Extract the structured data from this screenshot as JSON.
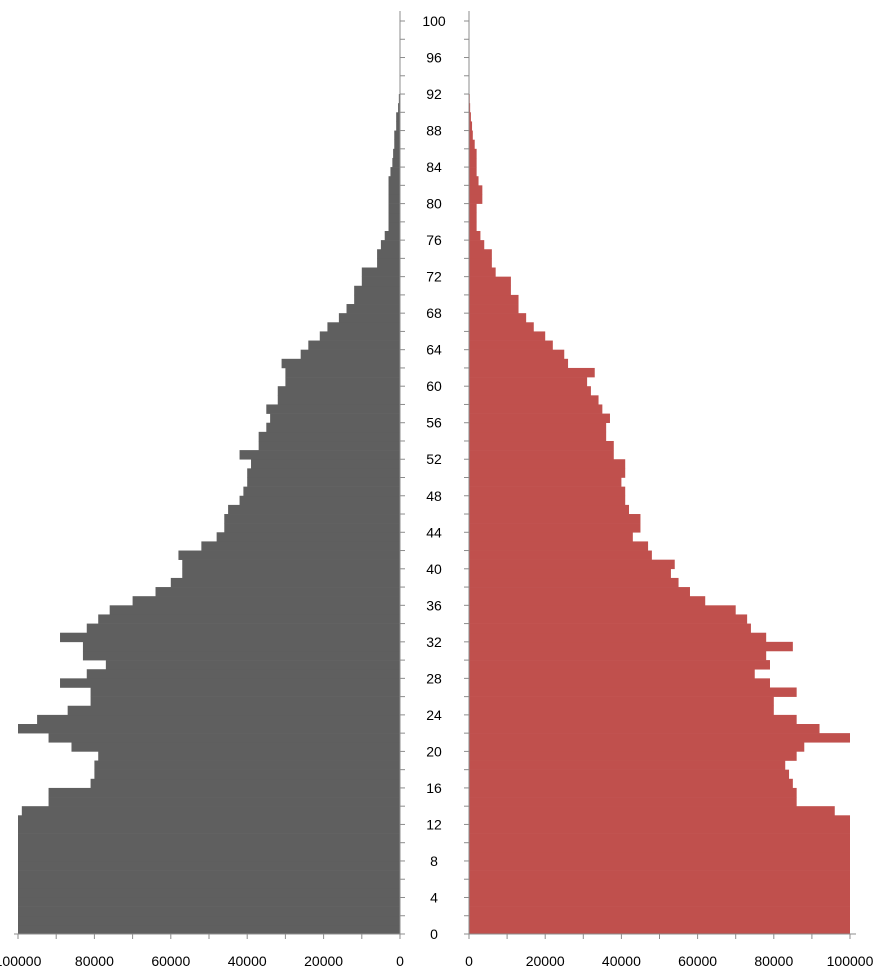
{
  "chart_data": [
    {
      "type": "bar",
      "orientation": "horizontal",
      "direction": "leftward",
      "xlim": [
        0,
        100000
      ],
      "x_ticks": [
        "100000",
        "80000",
        "60000",
        "40000",
        "20000",
        "0"
      ],
      "y_ticks": [
        "0",
        "4",
        "8",
        "12",
        "16",
        "20",
        "24",
        "28",
        "32",
        "36",
        "40",
        "44",
        "48",
        "52",
        "56",
        "60",
        "64",
        "68",
        "72",
        "76",
        "80",
        "84",
        "88",
        "92",
        "96",
        "100"
      ],
      "ylim": [
        0,
        100
      ],
      "color": "#5f5f5f",
      "categories": [
        0,
        1,
        2,
        3,
        4,
        5,
        6,
        7,
        8,
        9,
        10,
        11,
        12,
        13,
        14,
        15,
        16,
        17,
        18,
        19,
        20,
        21,
        22,
        23,
        24,
        25,
        26,
        27,
        28,
        29,
        30,
        31,
        32,
        33,
        34,
        35,
        36,
        37,
        38,
        39,
        40,
        41,
        42,
        43,
        44,
        45,
        46,
        47,
        48,
        49,
        50,
        51,
        52,
        53,
        54,
        55,
        56,
        57,
        58,
        59,
        60,
        61,
        62,
        63,
        64,
        65,
        66,
        67,
        68,
        69,
        70,
        71,
        72,
        73,
        74,
        75,
        76,
        77,
        78,
        79,
        80,
        81,
        82,
        83,
        84,
        85,
        86,
        87,
        88,
        89,
        90,
        91,
        92,
        93,
        94,
        95,
        96,
        97,
        98,
        99
      ],
      "values": [
        100000,
        100000,
        100000,
        100000,
        100000,
        100000,
        100000,
        100000,
        100000,
        100000,
        100000,
        100000,
        100000,
        99000,
        92000,
        92000,
        81000,
        80000,
        80000,
        79000,
        86000,
        92000,
        100000,
        95000,
        87000,
        81000,
        81000,
        89000,
        82000,
        77000,
        83000,
        83000,
        89000,
        82000,
        79000,
        76000,
        70000,
        64000,
        60000,
        57000,
        57000,
        58000,
        52000,
        48000,
        46000,
        46000,
        45000,
        42000,
        41000,
        40000,
        40000,
        39000,
        42000,
        37000,
        37000,
        35000,
        34000,
        35000,
        32000,
        32000,
        30000,
        30000,
        31000,
        26000,
        24000,
        21000,
        19000,
        16000,
        14000,
        12000,
        12000,
        10000,
        10000,
        6000,
        6000,
        5000,
        4000,
        3000,
        3000,
        3000,
        3000,
        3000,
        3000,
        2500,
        2000,
        1800,
        1500,
        1500,
        1000,
        1000,
        500,
        300,
        0,
        0,
        0,
        0,
        0,
        0,
        0,
        0
      ]
    },
    {
      "type": "bar",
      "orientation": "horizontal",
      "direction": "rightward",
      "xlim": [
        0,
        100000
      ],
      "x_ticks": [
        "0",
        "20000",
        "40000",
        "60000",
        "80000",
        "100000"
      ],
      "color": "#c0504d",
      "categories": [
        0,
        1,
        2,
        3,
        4,
        5,
        6,
        7,
        8,
        9,
        10,
        11,
        12,
        13,
        14,
        15,
        16,
        17,
        18,
        19,
        20,
        21,
        22,
        23,
        24,
        25,
        26,
        27,
        28,
        29,
        30,
        31,
        32,
        33,
        34,
        35,
        36,
        37,
        38,
        39,
        40,
        41,
        42,
        43,
        44,
        45,
        46,
        47,
        48,
        49,
        50,
        51,
        52,
        53,
        54,
        55,
        56,
        57,
        58,
        59,
        60,
        61,
        62,
        63,
        64,
        65,
        66,
        67,
        68,
        69,
        70,
        71,
        72,
        73,
        74,
        75,
        76,
        77,
        78,
        79,
        80,
        81,
        82,
        83,
        84,
        85,
        86,
        87,
        88,
        89,
        90,
        91,
        92,
        93,
        94,
        95,
        96,
        97,
        98,
        99
      ],
      "values": [
        100000,
        100000,
        100000,
        100000,
        100000,
        100000,
        100000,
        100000,
        100000,
        100000,
        100000,
        100000,
        100000,
        96000,
        86000,
        86000,
        85000,
        84000,
        83000,
        86000,
        88000,
        100000,
        92000,
        86000,
        80000,
        80000,
        86000,
        79000,
        75000,
        79000,
        78000,
        85000,
        78000,
        74000,
        73000,
        70000,
        62000,
        58000,
        55000,
        53000,
        54000,
        48000,
        47000,
        43000,
        45000,
        45000,
        42000,
        41000,
        41000,
        40000,
        41000,
        41000,
        38000,
        38000,
        36000,
        36000,
        37000,
        35000,
        34000,
        32000,
        31000,
        33000,
        26000,
        25000,
        22000,
        20000,
        17000,
        15000,
        13000,
        13000,
        11000,
        11000,
        7000,
        6000,
        6000,
        4000,
        3000,
        2000,
        2000,
        2000,
        3500,
        3500,
        2500,
        2000,
        2000,
        2000,
        1500,
        1000,
        800,
        500,
        300,
        200,
        0,
        0,
        0,
        0,
        0,
        0,
        0,
        0
      ]
    }
  ]
}
